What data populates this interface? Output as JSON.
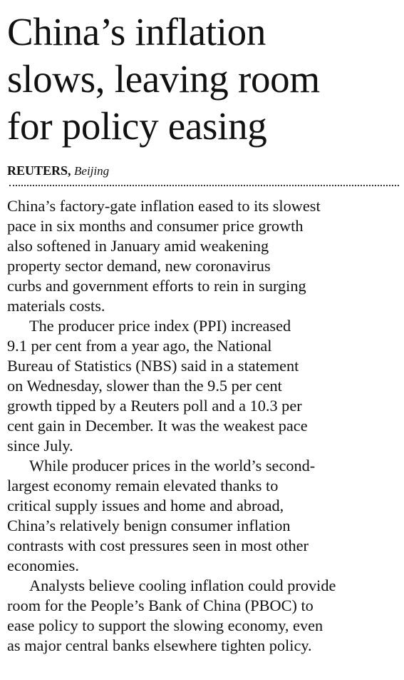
{
  "headline": {
    "lines": [
      "China’s inflation",
      "slows, leaving room",
      "for policy easing"
    ]
  },
  "byline": {
    "agency": "REUTERS,",
    "location": "Beijing"
  },
  "paragraphs": [
    {
      "lines": [
        "China’s factory-gate inflation eased to its slowest",
        "pace in six months and consumer price growth",
        "also softened in January amid weakening",
        "property sector demand, new coronavirus",
        "curbs and government efforts to rein in surging",
        "materials costs."
      ]
    },
    {
      "lines": [
        "The producer price index (PPI) increased",
        "9.1 per cent from a year ago, the National",
        "Bureau of Statistics (NBS) said in a statement",
        "on Wednesday, slower than the 9.5 per cent",
        "growth tipped by a Reuters poll and a 10.3 per",
        "cent gain in December. It was the weakest pace",
        "since July."
      ]
    },
    {
      "lines": [
        "While producer prices in the world’s second-",
        "largest economy remain elevated thanks to",
        "critical supply issues and home and abroad,",
        "China’s relatively benign consumer inflation",
        "contrasts with cost pressures seen in most other",
        "economies."
      ]
    },
    {
      "lines": [
        "Analysts believe cooling inflation could provide",
        "room for the People’s Bank of China (PBOC) to",
        "ease policy to support the slowing economy, even",
        "as major central banks elsewhere tighten policy."
      ]
    }
  ]
}
